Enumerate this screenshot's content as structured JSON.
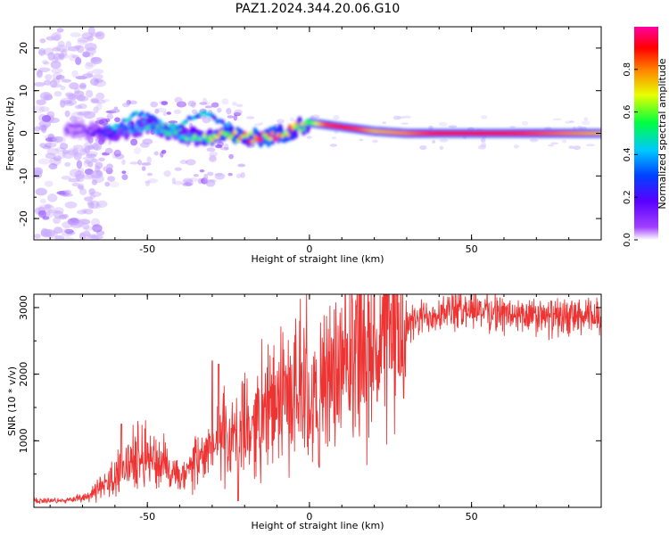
{
  "title": "PAZ1.2024.344.20.06.G10",
  "chart_data": [
    {
      "type": "heatmap",
      "xlabel": "Height of straight line (km)",
      "ylabel": "Frequency (Hz)",
      "xlim": [
        -85,
        90
      ],
      "ylim": [
        -25,
        25
      ],
      "xticks": [
        -50,
        0,
        50
      ],
      "yticks": [
        -20,
        -10,
        0,
        10,
        20
      ],
      "colorbar": {
        "label": "Normalized spectral amplitude",
        "range": [
          0.0,
          1.0
        ],
        "ticks": [
          0.0,
          0.2,
          0.4,
          0.6,
          0.8
        ],
        "tick_labels": [
          "0.0",
          "0.2",
          "0.4",
          "0.6",
          "0.8"
        ],
        "colormap": "rainbow (violet -> blue -> cyan -> green -> yellow -> red -> magenta)"
      },
      "ridge": {
        "x": [
          -70,
          -65,
          -60,
          -55,
          -50,
          -45,
          -40,
          -35,
          -30,
          -25,
          -22,
          -15,
          -10,
          -5,
          0,
          5,
          10,
          15,
          20,
          30,
          40,
          50,
          60,
          70,
          80,
          90
        ],
        "frequency": [
          1,
          0,
          0.5,
          1,
          2,
          1,
          0,
          -1,
          -1,
          0,
          -1,
          -1,
          -0.5,
          1,
          2.5,
          2,
          1.5,
          1,
          0.5,
          0,
          0,
          0,
          0,
          0,
          0,
          0
        ],
        "amplitude": [
          0.1,
          0.2,
          0.3,
          0.35,
          0.4,
          0.45,
          0.5,
          0.55,
          0.6,
          0.7,
          0.8,
          0.85,
          0.85,
          0.7,
          0.55,
          0.85,
          0.9,
          0.85,
          0.75,
          0.8,
          0.9,
          0.9,
          0.9,
          0.85,
          0.8,
          0.75
        ]
      }
    },
    {
      "type": "line",
      "xlabel": "Height of straight line (km)",
      "ylabel": "SNR (10 * v/v)",
      "xlim": [
        -85,
        90
      ],
      "ylim": [
        0,
        3200
      ],
      "xticks": [
        -50,
        0,
        50
      ],
      "yticks": [
        1000,
        2000,
        3000
      ],
      "line_color": "#ee3333",
      "series": [
        {
          "x": [
            -85,
            -75,
            -70,
            -65,
            -60,
            -55,
            -50,
            -45,
            -40,
            -35,
            -30,
            -25,
            -20,
            -15,
            -10,
            -5,
            0,
            3,
            5,
            10,
            20,
            30,
            35,
            40,
            45,
            50,
            55,
            60,
            70,
            80,
            90
          ],
          "values": [
            100,
            100,
            150,
            250,
            450,
            700,
            800,
            600,
            400,
            650,
            900,
            1000,
            1100,
            1350,
            1550,
            1700,
            1750,
            1400,
            1900,
            2000,
            2400,
            2700,
            2850,
            2950,
            2950,
            3000,
            2950,
            2900,
            2850,
            2850,
            2850
          ],
          "spikes": [
            {
              "x": -58,
              "value": 1250
            },
            {
              "x": -30,
              "value": 2200
            },
            {
              "x": -28,
              "value": 2150
            },
            {
              "x": -22,
              "value": 100
            },
            {
              "x": 3,
              "value": 600
            },
            {
              "x": 7,
              "value": 1600
            }
          ]
        }
      ]
    }
  ]
}
